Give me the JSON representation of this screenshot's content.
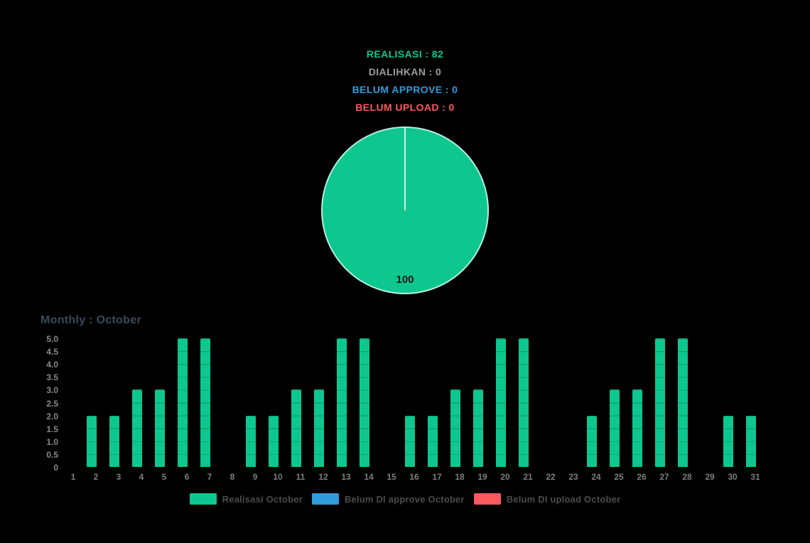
{
  "colors": {
    "background": "#000000",
    "realisasi_green": "#0dc78e",
    "approve_blue": "#2f9cdb",
    "upload_red": "#fa5a5e",
    "dialihkan_gray": "#9d9d9d",
    "title_gray": "#3e4a56",
    "axis_gray": "#7d7d7d",
    "legend_text": "#4c4c4c",
    "pie_label_text": "#141414"
  },
  "stats": [
    {
      "text": "REALISASI : 82",
      "color": "#0dc78e"
    },
    {
      "text": "DIALIHKAN : 0",
      "color": "#9d9d9d"
    },
    {
      "text": "BELUM APPROVE : 0",
      "color": "#2f9cdb"
    },
    {
      "text": "BELUM UPLOAD : 0",
      "color": "#fa5a5e"
    }
  ],
  "pie": {
    "slice_label": "100",
    "color": "#0dc78e"
  },
  "bar_chart": {
    "title": "Monthly : October",
    "yticks": [
      "5.0",
      "4.5",
      "4.0",
      "3.5",
      "3.0",
      "2.5",
      "2.0",
      "1.5",
      "1.0",
      "0.5",
      "0"
    ]
  },
  "legend": [
    {
      "label": "Realisasi October",
      "color": "#0dc78e"
    },
    {
      "label": "Belum DI approve October",
      "color": "#2f9cdb"
    },
    {
      "label": "Belum DI upload October",
      "color": "#fa5a5e"
    }
  ],
  "chart_data": [
    {
      "type": "pie",
      "title": "",
      "slices": [
        {
          "label": "100",
          "value": 100,
          "color": "#0dc78e",
          "name": "Realisasi"
        }
      ],
      "annotations": [
        "REALISASI : 82",
        "DIALIHKAN : 0",
        "BELUM APPROVE : 0",
        "BELUM UPLOAD : 0"
      ],
      "legend_position": "none"
    },
    {
      "type": "bar",
      "title": "Monthly : October",
      "categories": [
        "1",
        "2",
        "3",
        "4",
        "5",
        "6",
        "7",
        "8",
        "9",
        "10",
        "11",
        "12",
        "13",
        "14",
        "15",
        "16",
        "17",
        "18",
        "19",
        "20",
        "21",
        "22",
        "23",
        "24",
        "25",
        "26",
        "27",
        "28",
        "29",
        "30",
        "31"
      ],
      "series": [
        {
          "name": "Realisasi October",
          "color": "#0dc78e",
          "values": [
            0,
            2,
            2,
            3,
            3,
            5,
            5,
            0,
            2,
            2,
            3,
            3,
            5,
            5,
            0,
            2,
            2,
            3,
            3,
            5,
            5,
            0,
            0,
            2,
            3,
            3,
            5,
            5,
            0,
            2,
            2
          ]
        },
        {
          "name": "Belum DI approve October",
          "color": "#2f9cdb",
          "values": [
            0,
            0,
            0,
            0,
            0,
            0,
            0,
            0,
            0,
            0,
            0,
            0,
            0,
            0,
            0,
            0,
            0,
            0,
            0,
            0,
            0,
            0,
            0,
            0,
            0,
            0,
            0,
            0,
            0,
            0,
            0
          ]
        },
        {
          "name": "Belum DI upload October",
          "color": "#fa5a5e",
          "values": [
            0,
            0,
            0,
            0,
            0,
            0,
            0,
            0,
            0,
            0,
            0,
            0,
            0,
            0,
            0,
            0,
            0,
            0,
            0,
            0,
            0,
            0,
            0,
            0,
            0,
            0,
            0,
            0,
            0,
            0,
            0
          ]
        }
      ],
      "xlabel": "",
      "ylabel": "",
      "ylim": [
        0,
        5
      ],
      "ytick_labels": [
        "5.0",
        "4.5",
        "4.0",
        "3.5",
        "3.0",
        "2.5",
        "2.0",
        "1.5",
        "1.0",
        "0.5",
        "0"
      ],
      "grid": false,
      "legend_position": "bottom"
    }
  ]
}
